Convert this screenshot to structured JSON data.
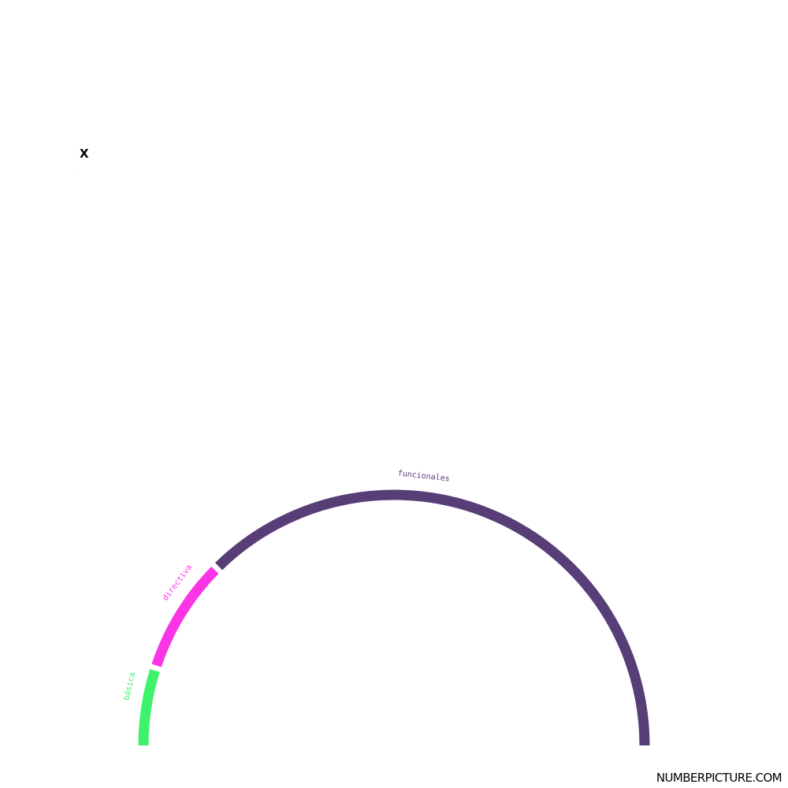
{
  "chart_data": {
    "type": "pie",
    "title": "X",
    "subtitle": ".",
    "segments": [
      {
        "label": "básica",
        "value": 10,
        "color": "#3ef36b"
      },
      {
        "label": "directiva",
        "value": 15,
        "color": "#fb35e5"
      },
      {
        "label": "funcionales",
        "value": 75,
        "color": "#573e77"
      }
    ]
  },
  "watermark": "NUMBERPICTURE.COM"
}
